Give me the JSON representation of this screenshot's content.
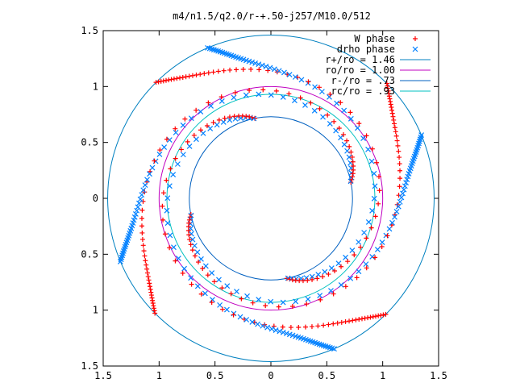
{
  "chart_data": {
    "type": "scatter",
    "title": "m4/n1.5/q2.0/r-+.50-j257/M10.0/512",
    "xlabel": "",
    "ylabel": "",
    "xlim": [
      -1.5,
      1.5
    ],
    "ylim": [
      -1.5,
      1.5
    ],
    "x_ticks": [
      "1.5",
      "1",
      "0.5",
      "0",
      "0.5",
      "1",
      "1.5"
    ],
    "y_ticks": [
      "1.5",
      "1",
      "0.5",
      "0",
      "0.5",
      "1",
      "1.5"
    ],
    "tick_values": [
      -1.5,
      -1.0,
      -0.5,
      0,
      0.5,
      1.0,
      1.5
    ],
    "grid": false,
    "legend_position": "top-right",
    "m": 4,
    "r_plus": 1.46,
    "r_o": 1.0,
    "r_minus": 0.73,
    "r_c": 0.93,
    "series": [
      {
        "name": "W phase",
        "marker": "plus",
        "color": "#ff0000"
      },
      {
        "name": "drho phase",
        "marker": "cross",
        "color": "#0080ff"
      },
      {
        "name": "r+/ro = 1.46",
        "kind": "circle",
        "radius": 1.46,
        "color": "#0080c0"
      },
      {
        "name": "ro/ro = 1.00",
        "kind": "circle",
        "radius": 1.0,
        "color": "#c000c0"
      },
      {
        "name": "r-/ro = .73",
        "kind": "circle",
        "radius": 0.73,
        "color": "#0060c0"
      },
      {
        "name": "rc/ro = .93",
        "kind": "circle",
        "radius": 0.93,
        "color": "#00c0c0"
      }
    ]
  }
}
